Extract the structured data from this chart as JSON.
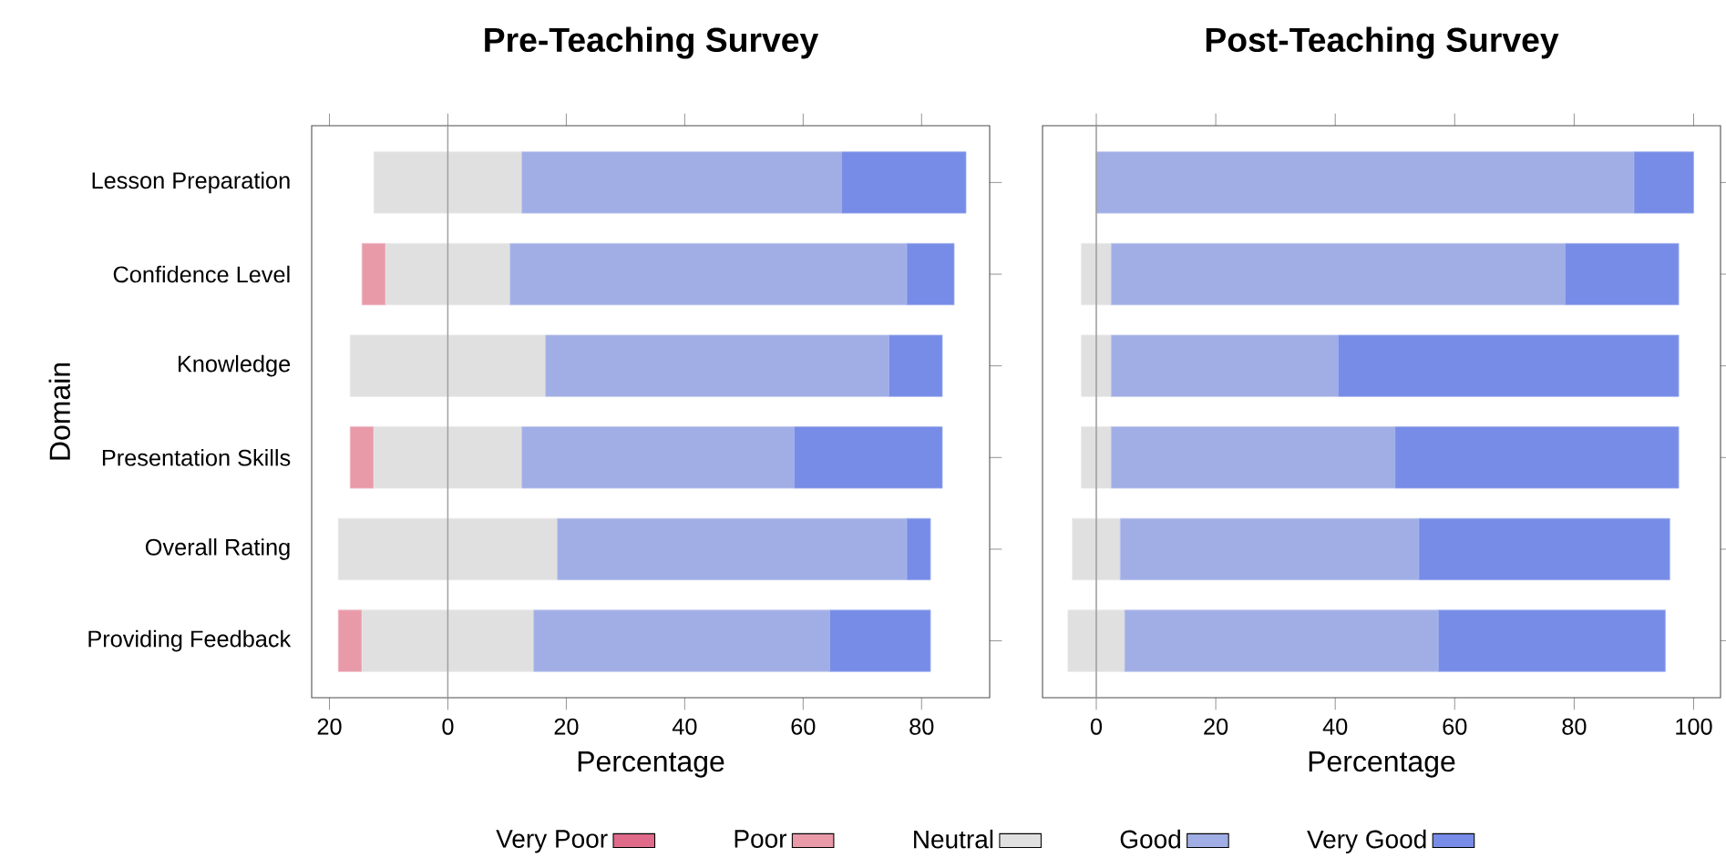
{
  "chart_data": [
    {
      "type": "bar",
      "orientation": "horizontal",
      "title": "Pre-Teaching Survey",
      "xlabel": "Percentage",
      "ylabel": "Domain",
      "categories": [
        "Lesson Preparation",
        "Confidence Level",
        "Knowledge",
        "Presentation Skills",
        "Overall Rating",
        "Providing Feedback"
      ],
      "series": [
        {
          "name": "Very Poor",
          "color": "#df6a8a",
          "values": [
            0,
            0,
            0,
            0,
            0,
            0
          ],
          "base": [
            null,
            null,
            null,
            null,
            null,
            null
          ]
        },
        {
          "name": "Poor",
          "color": "#e89aa9",
          "values": [
            0,
            4,
            0,
            4,
            0,
            4
          ],
          "base": [
            null,
            -14.5,
            null,
            -16.5,
            null,
            -18.5
          ]
        },
        {
          "name": "Neutral",
          "color": "#e0e0e0",
          "values": [
            25,
            21,
            33,
            25,
            37,
            29
          ],
          "base": [
            -12.5,
            -10.5,
            -16.5,
            -12.5,
            -18.5,
            -14.5
          ]
        },
        {
          "name": "Good",
          "color": "#a1aee5",
          "values": [
            54,
            67,
            58,
            46,
            59,
            50
          ],
          "base": [
            12.5,
            10.5,
            16.5,
            12.5,
            18.5,
            14.5
          ]
        },
        {
          "name": "Very Good",
          "color": "#778ce6",
          "values": [
            21,
            8,
            9,
            25,
            4,
            17
          ],
          "base": [
            66.5,
            77.5,
            74.5,
            58.5,
            77.5,
            64.5
          ]
        }
      ],
      "xlim": [
        -23,
        91.5
      ],
      "xticks": [
        {
          "value": -20,
          "label": "20"
        },
        0,
        20,
        40,
        60,
        80
      ],
      "ref_lines": [
        {
          "axis": "x",
          "value": 0,
          "color": "#a0a0a0"
        }
      ],
      "legend": "bottom"
    },
    {
      "type": "bar",
      "orientation": "horizontal",
      "title": "Post-Teaching Survey",
      "xlabel": "Percentage",
      "categories": [
        null,
        null,
        null,
        null,
        null,
        null
      ],
      "series": [
        {
          "color": "#e0e0e0",
          "values": [
            0,
            5,
            5,
            5,
            8,
            9.5
          ],
          "base": [
            null,
            -2.5,
            -2.5,
            -2.5,
            -4,
            -4.75
          ]
        },
        {
          "color": "#a1aee5",
          "values": [
            90,
            76,
            38,
            47.5,
            50,
            52.5
          ],
          "base": [
            0,
            2.5,
            2.5,
            2.5,
            4,
            4.75
          ]
        },
        {
          "color": "#778ce6",
          "values": [
            10,
            19,
            57,
            47.5,
            42,
            38
          ],
          "base": [
            90,
            78.5,
            40.5,
            50,
            54,
            57.25
          ]
        }
      ],
      "xlim": [
        -9,
        104.5
      ],
      "xticks": [
        0,
        20,
        40,
        60,
        80,
        100
      ],
      "ref_lines": [
        {
          "axis": "x",
          "value": 0,
          "color": "#a0a0a0"
        }
      ],
      "tick_labels": "x"
    }
  ]
}
